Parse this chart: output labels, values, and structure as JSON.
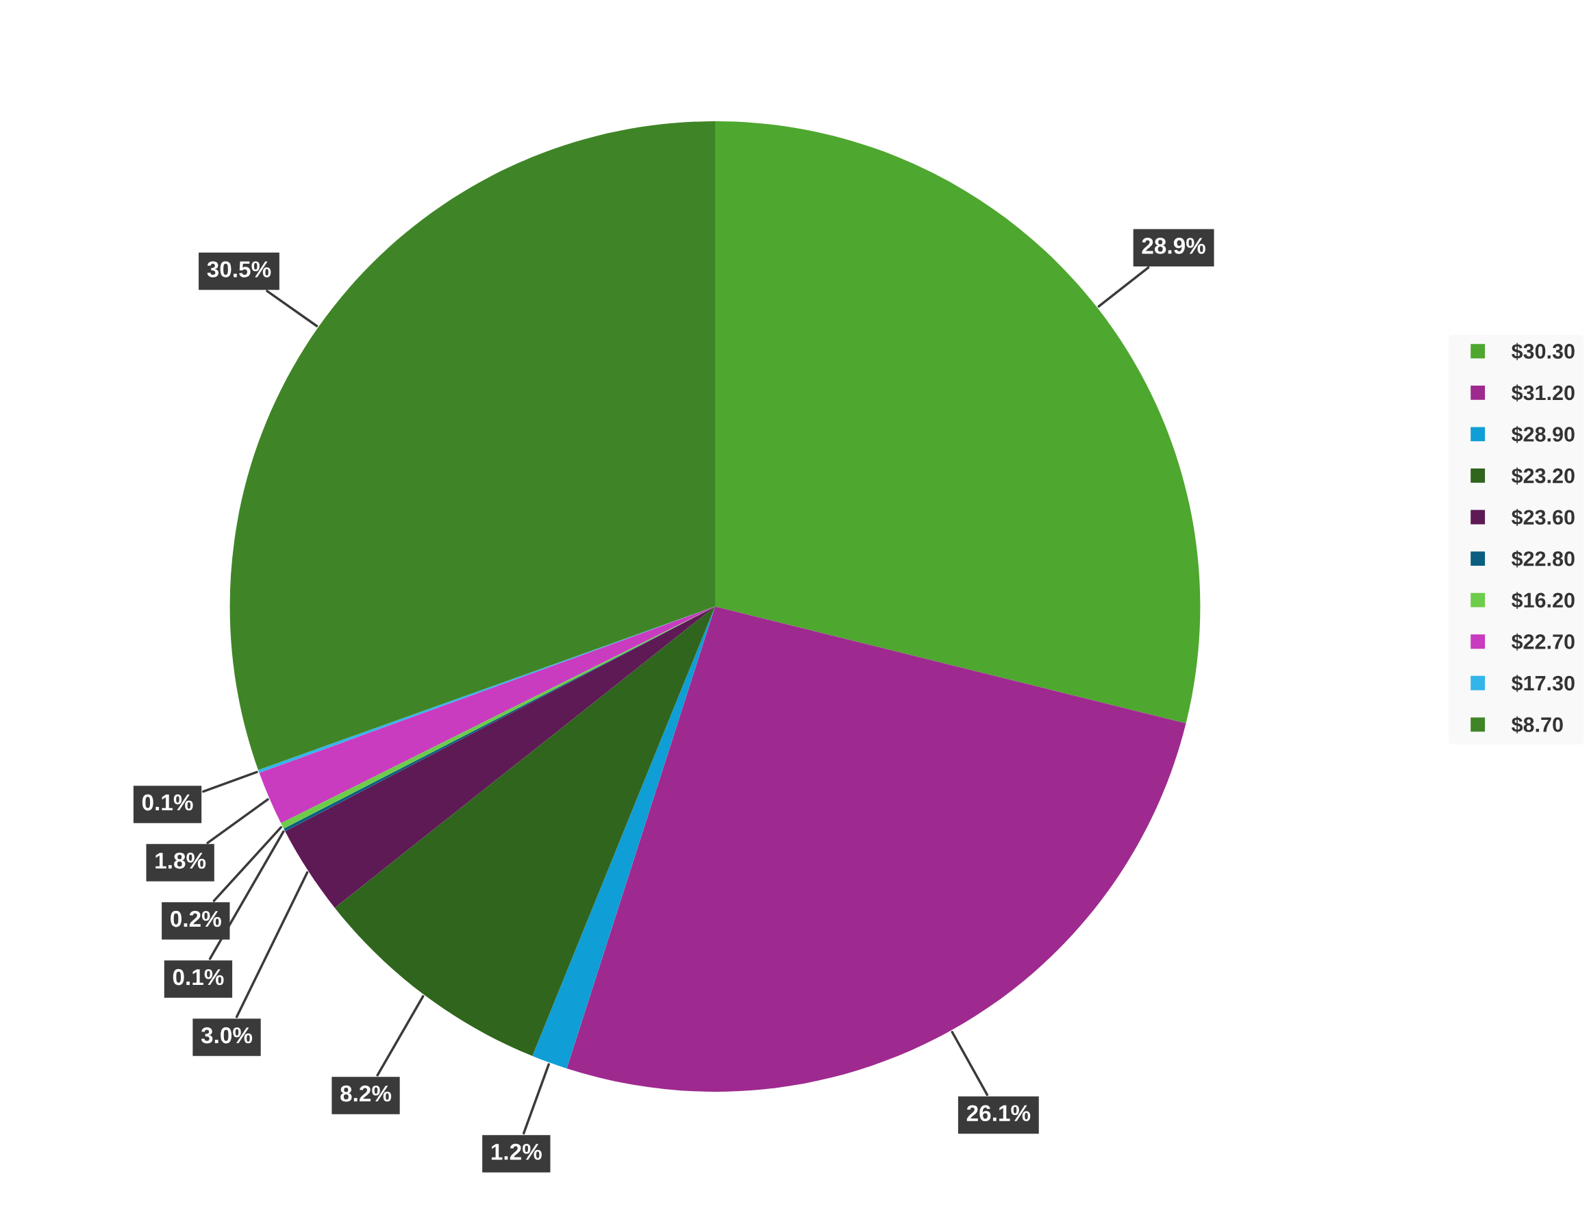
{
  "chart_data": {
    "type": "pie",
    "categories": [
      "$30.30",
      "$31.20",
      "$28.90",
      "$23.20",
      "$23.60",
      "$22.80",
      "$16.20",
      "$22.70",
      "$17.30",
      "$8.70"
    ],
    "values": [
      28.9,
      26.1,
      1.2,
      8.2,
      3.0,
      0.1,
      0.2,
      1.8,
      0.1,
      30.5
    ],
    "colors": [
      "#4ea72e",
      "#9e2a8f",
      "#0f9ed5",
      "#2f651d",
      "#5e1a54",
      "#0b5e80",
      "#6dcc4a",
      "#c93bbf",
      "#33b5ea",
      "#3f8527"
    ],
    "value_labels": [
      "28.9%",
      "26.1%",
      "1.2%",
      "8.2%",
      "3.0%",
      "0.1%",
      "0.2%",
      "1.8%",
      "0.1%",
      "30.5%"
    ],
    "legend": "right"
  }
}
